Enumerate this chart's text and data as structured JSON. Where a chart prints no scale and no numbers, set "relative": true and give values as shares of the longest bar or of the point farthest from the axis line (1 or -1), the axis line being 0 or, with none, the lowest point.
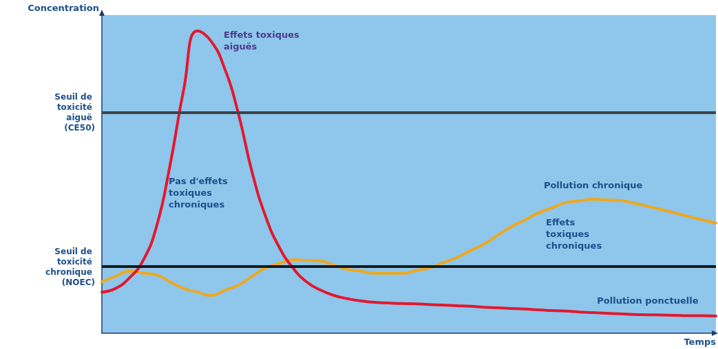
{
  "chart_data": {
    "type": "line",
    "relative": true,
    "xlabel": "Temps",
    "ylabel": "Concentration",
    "categories": [
      null,
      null,
      null,
      null,
      null,
      null,
      null,
      null,
      null,
      null,
      null,
      null,
      null,
      null,
      null,
      null,
      null,
      null,
      null,
      null,
      null,
      null,
      null,
      null,
      null,
      null,
      null,
      null,
      null,
      null,
      null,
      null,
      null,
      null,
      null,
      null,
      null,
      null,
      null,
      null,
      null,
      null,
      null,
      null,
      null,
      null
    ],
    "series": [
      {
        "name": "Pollution ponctuelle",
        "color": "#e3182d",
        "values": [
          0.136,
          0.148,
          0.182,
          0.239,
          0.352,
          0.557,
          0.807,
          1.0,
          0.966,
          0.875,
          0.727,
          0.534,
          0.386,
          0.284,
          0.216,
          0.17,
          0.143,
          0.125,
          0.114,
          0.107,
          0.102,
          0.1,
          0.098,
          0.097,
          0.095,
          0.093,
          0.091,
          0.089,
          0.086,
          0.084,
          0.082,
          0.08,
          0.077,
          0.075,
          0.073,
          0.07,
          0.068,
          0.066,
          0.064,
          0.062,
          0.061,
          0.06,
          0.059,
          0.058,
          0.058,
          0.057
        ]
      },
      {
        "name": "Pollution chronique",
        "color": "#f0a81c",
        "values": [
          0.17,
          0.188,
          0.205,
          0.199,
          0.193,
          0.17,
          0.148,
          0.136,
          0.125,
          0.142,
          0.159,
          0.188,
          0.216,
          0.23,
          0.243,
          0.241,
          0.239,
          0.225,
          0.211,
          0.205,
          0.198,
          0.198,
          0.198,
          0.207,
          0.216,
          0.233,
          0.25,
          0.273,
          0.295,
          0.324,
          0.352,
          0.375,
          0.398,
          0.415,
          0.432,
          0.438,
          0.443,
          0.441,
          0.439,
          0.43,
          0.42,
          0.409,
          0.398,
          0.386,
          0.375,
          0.364
        ]
      }
    ],
    "ref_lines": [
      {
        "axis": "y",
        "value": 0.727,
        "label": "Seuil de toxicité aiguë (CE50)",
        "color": "#3d4448"
      },
      {
        "axis": "y",
        "value": 0.218,
        "label": "Seuil de toxicité chronique (NOEC)",
        "color": "#1a1a1a"
      }
    ],
    "annotations": [
      "Effets toxiques aiguës",
      "Pas d'effets toxiques chroniques",
      "Effets toxiques chroniques"
    ],
    "grid": false,
    "legend": false,
    "marker": "none",
    "line_style": "solid"
  }
}
